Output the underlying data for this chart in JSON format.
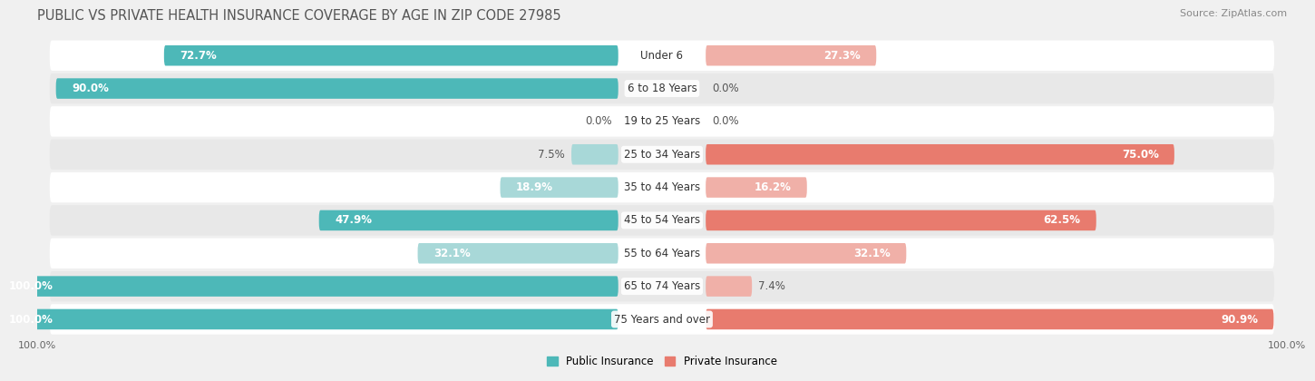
{
  "title": "PUBLIC VS PRIVATE HEALTH INSURANCE COVERAGE BY AGE IN ZIP CODE 27985",
  "source": "Source: ZipAtlas.com",
  "categories": [
    "Under 6",
    "6 to 18 Years",
    "19 to 25 Years",
    "25 to 34 Years",
    "35 to 44 Years",
    "45 to 54 Years",
    "55 to 64 Years",
    "65 to 74 Years",
    "75 Years and over"
  ],
  "public_values": [
    72.7,
    90.0,
    0.0,
    7.5,
    18.9,
    47.9,
    32.1,
    100.0,
    100.0
  ],
  "private_values": [
    27.3,
    0.0,
    0.0,
    75.0,
    16.2,
    62.5,
    32.1,
    7.4,
    90.9
  ],
  "public_color": "#4db8b8",
  "public_color_light": "#a8d8d8",
  "private_color": "#e87b6e",
  "private_color_light": "#f0b0a8",
  "public_label": "Public Insurance",
  "private_label": "Private Insurance",
  "bar_height": 0.62,
  "bg_color": "#f0f0f0",
  "row_color_odd": "#ffffff",
  "row_color_even": "#e8e8e8",
  "xlim": 100,
  "title_fontsize": 10.5,
  "label_fontsize": 8.5,
  "cat_fontsize": 8.5,
  "tick_fontsize": 8,
  "source_fontsize": 8,
  "value_threshold_white": 12
}
